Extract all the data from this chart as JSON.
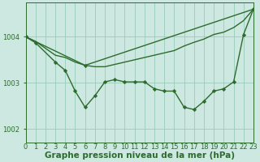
{
  "background_color": "#cce8e0",
  "grid_color": "#99ccbb",
  "line_color": "#2d6b2d",
  "xlim": [
    0,
    23
  ],
  "ylim": [
    1001.7,
    1004.75
  ],
  "yticks": [
    1002,
    1003,
    1004
  ],
  "title": "Graphe pression niveau de la mer (hPa)",
  "series": [
    {
      "x": [
        0,
        1,
        2,
        3,
        4,
        5,
        6,
        7,
        8,
        9,
        10,
        11,
        12,
        13,
        14,
        15,
        16,
        17,
        18,
        19,
        20,
        21,
        22,
        23
      ],
      "y": [
        1004.0,
        1003.9,
        1003.75,
        1003.6,
        1003.55,
        1003.45,
        1003.38,
        1003.35,
        1003.35,
        1003.4,
        1003.45,
        1003.5,
        1003.55,
        1003.6,
        1003.65,
        1003.7,
        1003.8,
        1003.88,
        1003.95,
        1004.05,
        1004.1,
        1004.2,
        1004.35,
        1004.6
      ],
      "markers": false
    },
    {
      "x": [
        0,
        6,
        23
      ],
      "y": [
        1004.0,
        1003.38,
        1004.6
      ],
      "markers": true
    },
    {
      "x": [
        0,
        1,
        3,
        4,
        5,
        6,
        7,
        8,
        9,
        10,
        11,
        12,
        13,
        14,
        15,
        16,
        17,
        18,
        19,
        20,
        21,
        22,
        23
      ],
      "y": [
        1004.0,
        1003.87,
        1003.45,
        1003.27,
        1002.82,
        1002.47,
        1002.72,
        1003.02,
        1003.07,
        1003.02,
        1003.02,
        1003.02,
        1002.87,
        1002.82,
        1002.82,
        1002.47,
        1002.42,
        1002.6,
        1002.82,
        1002.87,
        1003.02,
        1004.05,
        1004.6
      ],
      "markers": true
    }
  ],
  "linewidth": 1.0,
  "marker": "D",
  "marker_size": 2.2,
  "tick_fontsize": 6,
  "title_fontsize": 7.5
}
